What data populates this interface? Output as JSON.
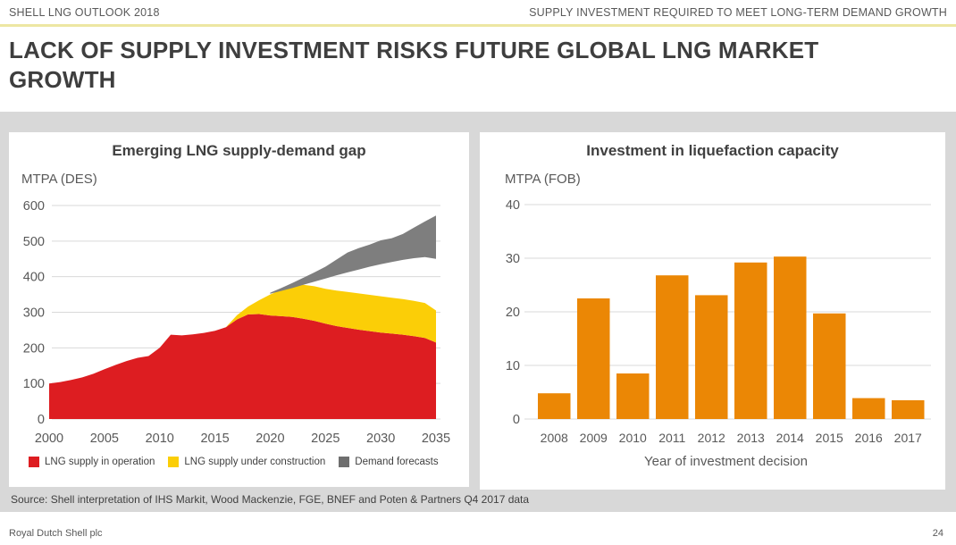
{
  "header": {
    "left": "SHELL LNG OUTLOOK 2018",
    "right": "SUPPLY INVESTMENT REQUIRED TO MEET LONG-TERM DEMAND GROWTH"
  },
  "title": "LACK OF SUPPLY INVESTMENT RISKS FUTURE GLOBAL LNG MARKET GROWTH",
  "title_lines": [
    "LACK OF SUPPLY INVESTMENT RISKS FUTURE GLOBAL LNG MARKET",
    "GROWTH"
  ],
  "source": "Source: Shell interpretation of IHS Markit, Wood Mackenzie, FGE, BNEF and Poten & Partners Q4 2017 data",
  "footer": {
    "left": "Royal Dutch Shell plc",
    "page": "24"
  },
  "colors": {
    "shell_red": "#DD1D21",
    "shell_yellow": "#FBCE07",
    "demand_gray": "#7E7E7E",
    "bar_orange": "#EB8705",
    "accent_rule": "#EDE7A3",
    "band_bg": "#D8D8D8",
    "grid": "#D9D9D9",
    "text_dark": "#404040",
    "text_mid": "#595959"
  },
  "chart_data": [
    {
      "type": "area",
      "title": "Emerging LNG supply-demand gap",
      "unit_label": "MTPA (DES)",
      "ylim": [
        0,
        600
      ],
      "yticks": [
        0,
        100,
        200,
        300,
        400,
        500,
        600
      ],
      "xticks": [
        2000,
        2005,
        2010,
        2015,
        2020,
        2025,
        2030,
        2035
      ],
      "x": [
        2000,
        2001,
        2002,
        2003,
        2004,
        2005,
        2006,
        2007,
        2008,
        2009,
        2010,
        2011,
        2012,
        2013,
        2014,
        2015,
        2016,
        2017,
        2018,
        2019,
        2020,
        2021,
        2022,
        2023,
        2024,
        2025,
        2026,
        2027,
        2028,
        2029,
        2030,
        2031,
        2032,
        2033,
        2034,
        2035
      ],
      "series": [
        {
          "name": "LNG supply in operation",
          "color": "#DD1D21",
          "kind": "stack-base",
          "values": [
            100,
            104,
            110,
            117,
            127,
            140,
            152,
            163,
            172,
            177,
            200,
            237,
            235,
            238,
            242,
            248,
            258,
            280,
            294,
            295,
            291,
            289,
            287,
            282,
            276,
            268,
            261,
            256,
            251,
            247,
            243,
            240,
            237,
            233,
            228,
            215
          ]
        },
        {
          "name": "LNG supply under construction",
          "color": "#FBCE07",
          "kind": "stack-top",
          "values": [
            null,
            null,
            null,
            null,
            null,
            null,
            null,
            null,
            null,
            null,
            null,
            null,
            null,
            null,
            null,
            null,
            258,
            292,
            316,
            334,
            350,
            363,
            372,
            377,
            373,
            366,
            361,
            357,
            353,
            349,
            345,
            341,
            337,
            332,
            326,
            305
          ]
        },
        {
          "name": "Demand forecasts",
          "color": "#7E7E7E",
          "kind": "band",
          "lower": [
            null,
            null,
            null,
            null,
            null,
            null,
            null,
            null,
            null,
            null,
            null,
            null,
            null,
            null,
            null,
            null,
            null,
            null,
            null,
            null,
            352,
            360,
            368,
            377,
            386,
            395,
            404,
            412,
            420,
            428,
            435,
            441,
            447,
            452,
            455,
            450
          ],
          "upper": [
            null,
            null,
            null,
            null,
            null,
            null,
            null,
            null,
            null,
            null,
            null,
            null,
            null,
            null,
            null,
            null,
            null,
            null,
            null,
            null,
            355,
            368,
            382,
            397,
            412,
            428,
            448,
            468,
            480,
            490,
            502,
            508,
            520,
            538,
            555,
            572
          ]
        }
      ],
      "legend": [
        {
          "label": "LNG supply in operation",
          "color": "#DD1D21"
        },
        {
          "label": "LNG supply under construction",
          "color": "#FBCE07"
        },
        {
          "label": "Demand forecasts",
          "color": "#6E6E6E"
        }
      ]
    },
    {
      "type": "bar",
      "title": "Investment in liquefaction capacity",
      "unit_label": "MTPA (FOB)",
      "xlabel": "Year of investment decision",
      "ylim": [
        0,
        40
      ],
      "yticks": [
        0,
        10,
        20,
        30,
        40
      ],
      "categories": [
        "2008",
        "2009",
        "2010",
        "2011",
        "2012",
        "2013",
        "2014",
        "2015",
        "2016",
        "2017"
      ],
      "values": [
        4.8,
        22.5,
        8.5,
        26.8,
        23.1,
        29.2,
        30.3,
        19.7,
        3.9,
        3.5
      ],
      "bar_color": "#EB8705"
    }
  ]
}
